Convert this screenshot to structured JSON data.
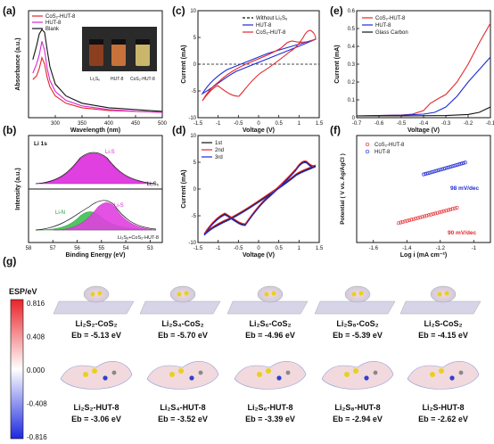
{
  "panels": {
    "a": "(a)",
    "b": "(b)",
    "c": "(c)",
    "d": "(d)",
    "e": "(e)",
    "f": "(f)",
    "g": "(g)"
  },
  "colors": {
    "red": "#e3262b",
    "magenta": "#d827d6",
    "blue": "#1f2bd6",
    "black": "#111111",
    "green": "#35b84a"
  },
  "chart_data": [
    {
      "id": "a",
      "type": "line",
      "xlabel": "Wavelength (nm)",
      "ylabel": "Absorbance (a.u.)",
      "xlim": [
        250,
        500
      ],
      "xticks": [
        300,
        350,
        400,
        450,
        500
      ],
      "series": [
        {
          "name": "CoS₂-HUT-8",
          "color": "#e3262b",
          "x": [
            258,
            265,
            270,
            275,
            280,
            285,
            290,
            300,
            320,
            350,
            400,
            450,
            500
          ],
          "y": [
            0.38,
            0.42,
            0.5,
            0.62,
            0.55,
            0.4,
            0.3,
            0.2,
            0.12,
            0.07,
            0.04,
            0.03,
            0.02
          ]
        },
        {
          "name": "HUT-8",
          "color": "#d827d6",
          "x": [
            258,
            265,
            270,
            275,
            280,
            285,
            290,
            300,
            320,
            350,
            400,
            450,
            500
          ],
          "y": [
            0.45,
            0.55,
            0.65,
            0.8,
            0.7,
            0.5,
            0.37,
            0.25,
            0.15,
            0.09,
            0.05,
            0.03,
            0.02
          ]
        },
        {
          "name": "Blank",
          "color": "#111111",
          "x": [
            258,
            265,
            270,
            275,
            280,
            285,
            290,
            300,
            320,
            350,
            400,
            450,
            500
          ],
          "y": [
            0.6,
            0.75,
            0.88,
            0.93,
            0.9,
            0.7,
            0.52,
            0.33,
            0.2,
            0.12,
            0.07,
            0.05,
            0.03
          ]
        }
      ],
      "inset_labels": [
        "Li₂S₆",
        "HUT-8",
        "CoS₂-HUT-8"
      ]
    },
    {
      "id": "b",
      "type": "area",
      "xlabel": "Binding Energy (eV)",
      "ylabel": "Intensity (a.u.)",
      "xlim": [
        58,
        52.5
      ],
      "xticks": [
        58,
        57,
        56,
        55,
        54,
        53
      ],
      "title_label": "Li 1s",
      "peak_labels": [
        "Li-S",
        "Li-S",
        "Li-N"
      ],
      "sample_labels": [
        "Li₂S₆",
        "Li₂S₆+CoS₂-HUT-8"
      ]
    },
    {
      "id": "c",
      "type": "line",
      "xlabel": "Voltage (V)",
      "ylabel": "Current (mA)",
      "xlim": [
        -1.5,
        1.5
      ],
      "ylim": [
        -10,
        10
      ],
      "xticks": [
        -1.5,
        -1.0,
        -0.5,
        0.0,
        0.5,
        1.0,
        1.5
      ],
      "yticks": [
        -10,
        -5,
        0,
        5,
        10
      ],
      "series": [
        {
          "name": "Without Li₂S₆",
          "color": "#111111",
          "dash": true
        },
        {
          "name": "HUT-8",
          "color": "#1f2bd6"
        },
        {
          "name": "CoS₂-HUT-8",
          "color": "#e3262b"
        }
      ]
    },
    {
      "id": "d",
      "type": "line",
      "xlabel": "Voltage (V)",
      "ylabel": "Current (mA)",
      "xlim": [
        -1.5,
        1.5
      ],
      "ylim": [
        -10,
        10
      ],
      "xticks": [
        -1.5,
        -1.0,
        -0.5,
        0.0,
        0.5,
        1.0,
        1.5
      ],
      "yticks": [
        -10,
        -5,
        0,
        5,
        10
      ],
      "series": [
        {
          "name": "1st",
          "color": "#111111"
        },
        {
          "name": "2nd",
          "color": "#e3262b"
        },
        {
          "name": "3rd",
          "color": "#1f2bd6"
        }
      ]
    },
    {
      "id": "e",
      "type": "line",
      "xlabel": "Voltage (V)",
      "ylabel": "Current (mA)",
      "xlim": [
        -0.7,
        -0.1
      ],
      "ylim": [
        0,
        0.6
      ],
      "xticks": [
        -0.7,
        -0.6,
        -0.5,
        -0.4,
        -0.3,
        -0.2,
        -0.1
      ],
      "yticks": [
        0.0,
        0.1,
        0.2,
        0.3,
        0.4,
        0.5,
        0.6
      ],
      "series": [
        {
          "name": "CoS₂-HUT-8",
          "color": "#e3262b",
          "x": [
            -0.7,
            -0.6,
            -0.5,
            -0.45,
            -0.4,
            -0.37,
            -0.33,
            -0.3,
            -0.25,
            -0.2,
            -0.15,
            -0.1
          ],
          "y": [
            0.01,
            0.012,
            0.015,
            0.02,
            0.04,
            0.08,
            0.11,
            0.13,
            0.2,
            0.3,
            0.42,
            0.53
          ]
        },
        {
          "name": "HUT-8",
          "color": "#1f2bd6",
          "x": [
            -0.7,
            -0.6,
            -0.5,
            -0.4,
            -0.35,
            -0.3,
            -0.25,
            -0.2,
            -0.15,
            -0.1
          ],
          "y": [
            0.01,
            0.012,
            0.014,
            0.02,
            0.03,
            0.06,
            0.12,
            0.2,
            0.27,
            0.34
          ]
        },
        {
          "name": "Glass Carbon",
          "color": "#111111",
          "x": [
            -0.7,
            -0.5,
            -0.3,
            -0.2,
            -0.15,
            -0.1
          ],
          "y": [
            0.01,
            0.01,
            0.012,
            0.018,
            0.03,
            0.06
          ]
        }
      ]
    },
    {
      "id": "f",
      "type": "scatter",
      "xlabel": "Log i  (mA cm⁻²)",
      "ylabel": "Potential ( V vs. Ag/AgCl )",
      "xlim": [
        -1.7,
        -0.9
      ],
      "ylim": [
        -0.42,
        -0.2
      ],
      "xticks": [
        -1.6,
        -1.4,
        -1.2,
        -1.0
      ],
      "series": [
        {
          "name": "CoS₂-HUT-8",
          "color": "#e3262b",
          "x_range": [
            -1.45,
            -1.1
          ],
          "slope": 0.09,
          "y0": -0.38
        },
        {
          "name": "HUT-8",
          "color": "#1f2bd6",
          "x_range": [
            -1.3,
            -1.05
          ],
          "slope": 0.098,
          "y0": -0.28
        }
      ],
      "annotations": [
        "98 mV/dec",
        "90 mV/dec"
      ]
    }
  ],
  "esp": {
    "title": "ESP/eV",
    "ticks": [
      "0.816",
      "0.408",
      "0.000",
      "-0.408",
      "-0.816"
    ]
  },
  "molecules_top": [
    {
      "name": "Li₂S₂-CoS₂",
      "eb": "Eb = -5.13 eV"
    },
    {
      "name": "Li₂S₄-CoS₂",
      "eb": "Eb = -5.70 eV"
    },
    {
      "name": "Li₂S₆-CoS₂",
      "eb": "Eb = -4.96 eV"
    },
    {
      "name": "Li₂S₈-CoS₂",
      "eb": "Eb = -5.39 eV"
    },
    {
      "name": "Li₂S-CoS₂",
      "eb": "Eb = -4.15 eV"
    }
  ],
  "molecules_bottom": [
    {
      "name": "Li₂S₂-HUT-8",
      "eb": "Eb = -3.06 eV"
    },
    {
      "name": "Li₂S₄-HUT-8",
      "eb": "Eb = -3.52 eV"
    },
    {
      "name": "Li₂S₆-HUT-8",
      "eb": "Eb = -3.39 eV"
    },
    {
      "name": "Li₂S₈-HUT-8",
      "eb": "Eb = -2.94 eV"
    },
    {
      "name": "Li₂S-HUT-8",
      "eb": "Eb = -2.62 eV"
    }
  ]
}
